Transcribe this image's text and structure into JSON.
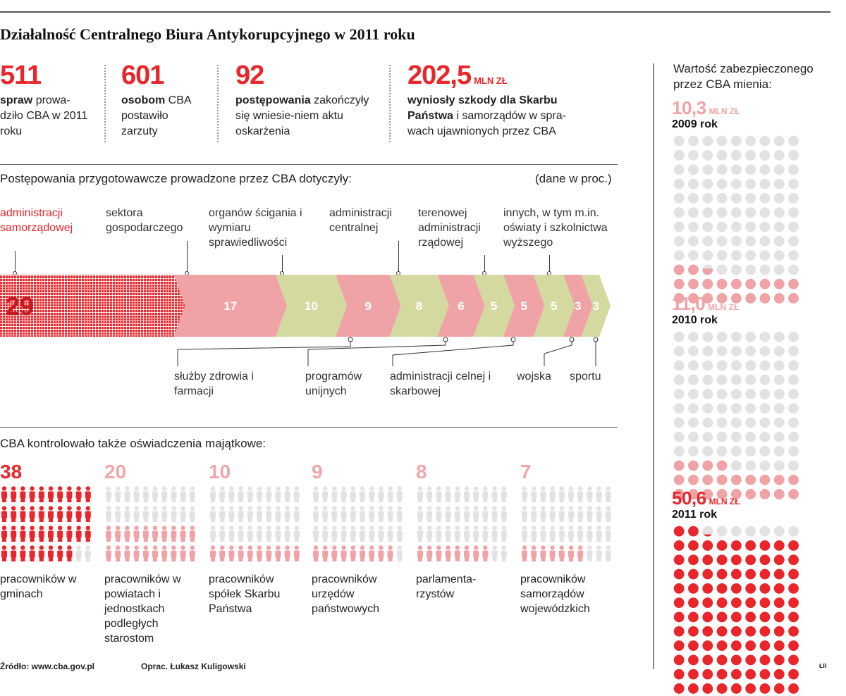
{
  "title": "Działalność Centralnego Biura Antykorupcyjnego w 2011 roku",
  "kpis": [
    {
      "value": "511",
      "unit": "",
      "bold": "spraw",
      "rest": " prowa-dziło CBA w 2011 roku"
    },
    {
      "value": "601",
      "unit": "",
      "bold": "osobom",
      "rest": " CBA postawiło zarzuty"
    },
    {
      "value": "92",
      "unit": "",
      "bold": "postępowania",
      "rest": " zakończyły się wniesie-niem aktu oskarżenia"
    },
    {
      "value": "202,5",
      "unit": "MLN ZŁ",
      "bold": "wyniosły szkody dla Skarbu Państwa",
      "rest": " i samorządów w spra-wach ujawnionych przez CBA"
    }
  ],
  "proceedings": {
    "label": "Postępowania przygotowawcze prowadzone przez CBA dotyczyły:",
    "units_note": "(dane w proc.)"
  },
  "people": {
    "label": "CBA kontrolowało także oświadczenia majątkowe:"
  },
  "right_panel": {
    "heading": "Wartość zabezpieczonego przez CBA mienia:",
    "unit": "MLN ZŁ",
    "years": [
      {
        "value": "10,3",
        "label": "2009 rok"
      },
      {
        "value": "11,0",
        "label": "2010 rok"
      },
      {
        "value": "50,6",
        "label": "2011 rok"
      }
    ]
  },
  "footer": {
    "source": "Źródło: www.cba.gov.pl",
    "author": "Oprac. Łukasz Kuligowski",
    "mark": "ŁR"
  },
  "colors": {
    "red": "#e8262b",
    "pink": "#f0a3a6",
    "olive": "#d4d99f",
    "grey": "#e1e1e1",
    "pale_red_text": "#f2a6a8"
  },
  "chart_data": [
    {
      "type": "bar",
      "title": "Postępowania przygotowawcze prowadzone przez CBA dotyczyły:",
      "note": "(dane w proc.)",
      "categories": [
        "administracji samorządowej",
        "sektora gospodarczego",
        "służby zdrowia i farmacji",
        "organów ścigania i wymiaru sprawiedliwości",
        "programów unijnych",
        "administracji centralnej",
        "administracji celnej i skarbowej",
        "terenowej administracji rządowej",
        "wojska",
        "innych, w tym m.in. oświaty i szkolnictwa wyższego",
        "sportu"
      ],
      "values": [
        29,
        17,
        10,
        9,
        8,
        6,
        5,
        5,
        5,
        3,
        3
      ],
      "bar_labels": [
        "29",
        "17",
        "10",
        "9",
        "8",
        "6",
        "5",
        "5",
        "5",
        "3",
        "3"
      ],
      "segment_colors": [
        "red",
        "pink",
        "olive",
        "pink",
        "olive",
        "pink",
        "olive",
        "pink",
        "olive",
        "pink",
        "olive"
      ],
      "label_positions": [
        "top",
        "bottom",
        "top",
        "bottom",
        "top",
        "bottom",
        "top",
        "bottom",
        "top",
        "bottom",
        "bottom"
      ],
      "label_top_order": [
        "administracji samorządowej",
        "sektora gospodarczego",
        "organów ścigania i wymiaru sprawiedliwości",
        "administracji centralnej",
        "terenowej administracji rządowej",
        "innych, w tym m.in. oświaty i szkolnictwa wyższego"
      ],
      "label_bottom_order": [
        "służby zdrowia i farmacji",
        "programów unijnych",
        "administracji celnej i skarbowej",
        "wojska",
        "sportu"
      ]
    },
    {
      "type": "bar",
      "title": "CBA kontrolowało także oświadczenia majątkowe:",
      "categories": [
        "pracowników w gminach",
        "pracowników w powiatach i jednostkach podległych starostom",
        "pracowników spółek Skarbu Państwa",
        "pracowników urzędów państwowych",
        "parlamentarzystów",
        "pracowników samorządów wojewódzkich"
      ],
      "display_labels": [
        "pracowników w gminach",
        "pracowników w powiatach i jednostkach podległych starostom",
        "pracowników spółek Skarbu Państwa",
        "pracowników urzędów państwowych",
        "parlamenta-rzystów",
        "pracowników samorządów wojewódzkich"
      ],
      "values": [
        38,
        20,
        10,
        9,
        8,
        7
      ],
      "icon_total": 40,
      "value_colors": [
        "red",
        "pale_red_text",
        "pale_red_text",
        "pale_red_text",
        "pale_red_text",
        "pale_red_text"
      ]
    },
    {
      "type": "bar",
      "title": "Wartość zabezpieczonego przez CBA mienia:",
      "categories": [
        "2009 rok",
        "2010 rok",
        "2011 rok"
      ],
      "values": [
        10.3,
        11.0,
        50.6
      ],
      "unit": "MLN ZŁ",
      "dot_unit": 0.5,
      "value_colors": [
        "pink",
        "pink",
        "red"
      ]
    }
  ]
}
